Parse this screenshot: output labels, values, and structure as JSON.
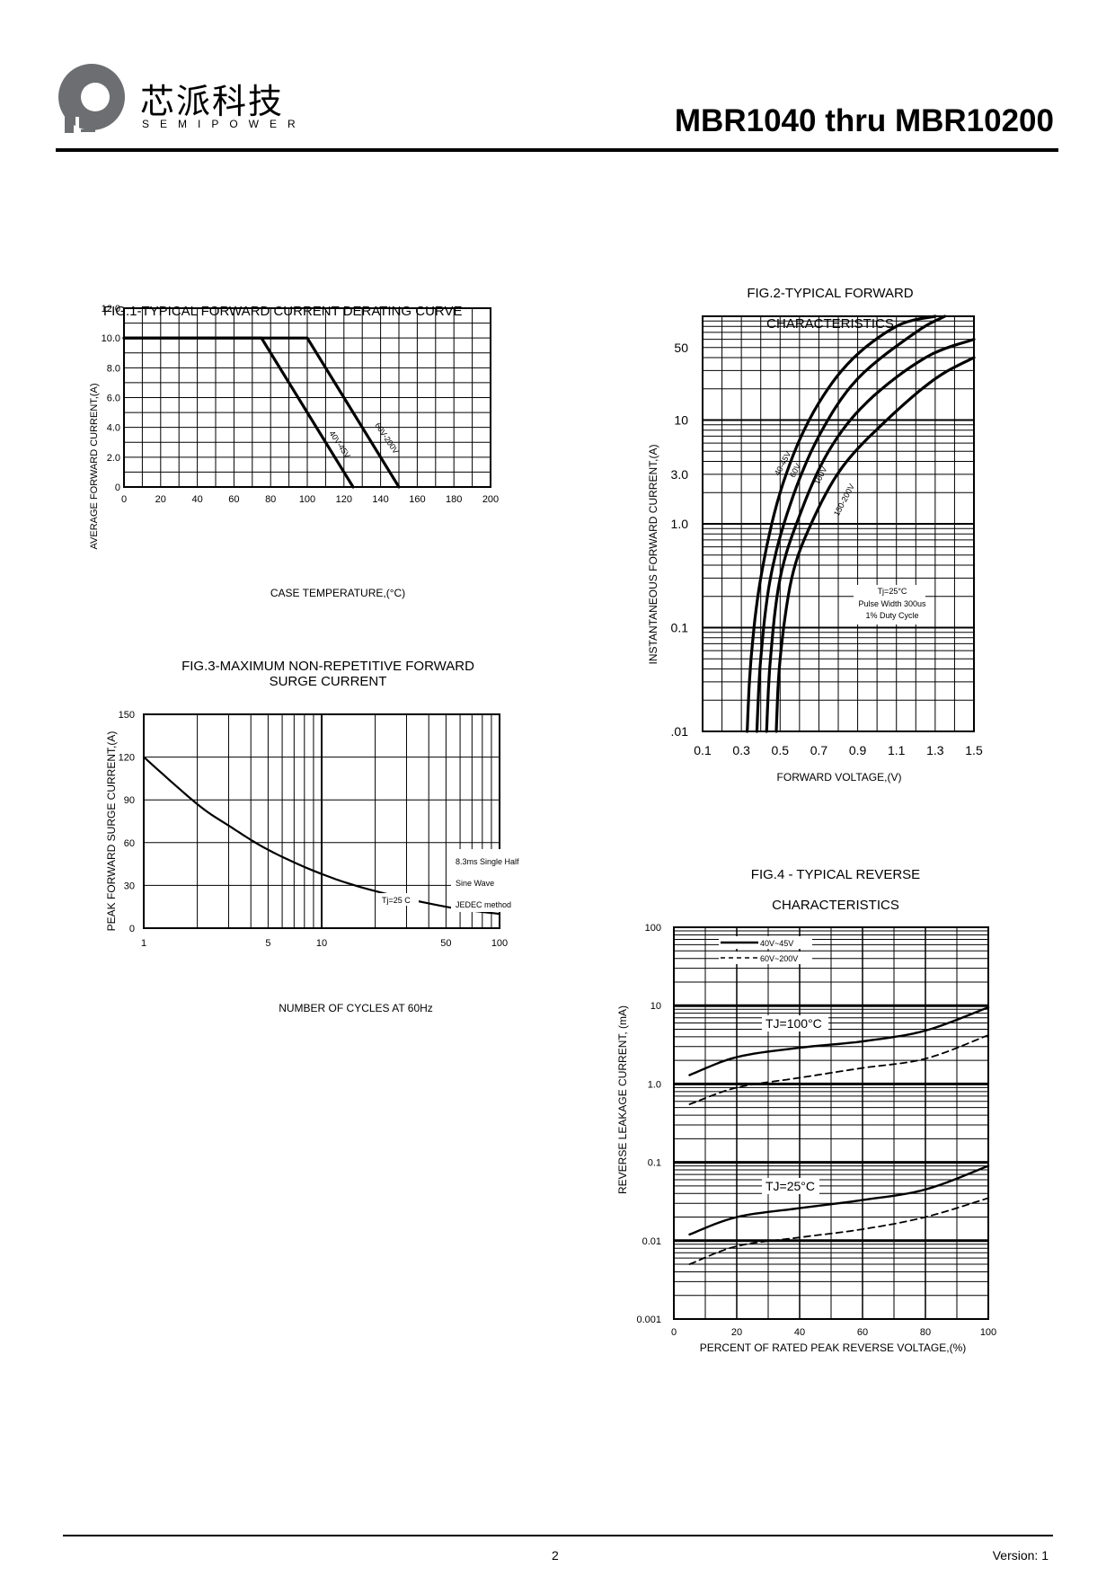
{
  "header": {
    "brand_cn": "芯派科技",
    "brand_en": "SEMIPOWER",
    "doc_title": "MBR1040 thru MBR10200"
  },
  "footer": {
    "page": "2",
    "version": "Version: 1"
  },
  "colors": {
    "ink": "#000000",
    "logo_gray": "#6d6e71"
  },
  "fig1": {
    "title": "FIG.1-TYPICAL FORWARD CURRENT DERATING CURVE",
    "ylabel": "AVERAGE FORWARD CURRENT,(A)",
    "xlabel": "CASE TEMPERATURE,(°C)",
    "xticks": [
      "0",
      "20",
      "40",
      "60",
      "80",
      "100",
      "120",
      "140",
      "160",
      "180",
      "200"
    ],
    "yticks": [
      "0",
      "2.0",
      "4.0",
      "6.0",
      "8.0",
      "10.0",
      "12.0"
    ],
    "curve_labels": [
      "40V-45V",
      "60V-200V"
    ]
  },
  "fig2": {
    "title_line1": "FIG.2-TYPICAL FORWARD",
    "title_line2": "CHARACTERISTICS",
    "ylabel": "INSTANTANEOUS FORWARD CURRENT,(A)",
    "xlabel": "FORWARD VOLTAGE,(V)",
    "xticks": [
      "0.1",
      "0.3",
      "0.5",
      "0.7",
      "0.9",
      "1.1",
      "1.3",
      "1.5"
    ],
    "yticks": [
      ".01",
      "0.1",
      "1.0",
      "3.0",
      "10",
      "50"
    ],
    "curve_labels": [
      "40-45V",
      "60V",
      "100V",
      "150-200V"
    ],
    "note_lines": [
      "Tj=25°C",
      "Pulse Width 300us",
      "1% Duty Cycle"
    ]
  },
  "fig3": {
    "title_line1": "FIG.3-MAXIMUM NON-REPETITIVE FORWARD",
    "title_line2": "SURGE CURRENT",
    "ylabel": "PEAK FORWARD SURGE CURRENT,(A)",
    "xlabel": "NUMBER OF CYCLES AT 60Hz",
    "xticks": [
      "1",
      "5",
      "10",
      "50",
      "100"
    ],
    "yticks": [
      "0",
      "30",
      "60",
      "90",
      "120",
      "150"
    ],
    "note_lines": [
      "8.3ms Single Half",
      "Sine Wave",
      "JEDEC method"
    ],
    "tj_label": "Tj=25 C"
  },
  "fig4": {
    "title_line1": "FIG.4 - TYPICAL REVERSE",
    "title_line2": "CHARACTERISTICS",
    "ylabel": "REVERSE LEAKAGE CURRENT, (mA)",
    "xlabel": "PERCENT OF RATED PEAK REVERSE VOLTAGE,(%)",
    "xticks": [
      "0",
      "20",
      "40",
      "60",
      "80",
      "100"
    ],
    "yticks": [
      "0.001",
      "0.01",
      "0.1",
      "1.0",
      "10",
      "100"
    ],
    "legend": [
      "40V~45V",
      "60V~200V"
    ],
    "tj_high": "TJ=100°C",
    "tj_low": "TJ=25°C"
  },
  "chart_data": [
    {
      "type": "line",
      "title": "FIG.1-TYPICAL FORWARD CURRENT DERATING CURVE",
      "xlabel": "CASE TEMPERATURE,(°C)",
      "ylabel": "AVERAGE FORWARD CURRENT,(A)",
      "xlim": [
        0,
        200
      ],
      "ylim": [
        0,
        12.0
      ],
      "grid": true,
      "series": [
        {
          "name": "40V-45V",
          "x": [
            0,
            75,
            125
          ],
          "y": [
            10.0,
            10.0,
            0
          ]
        },
        {
          "name": "60V-200V",
          "x": [
            0,
            100,
            150
          ],
          "y": [
            10.0,
            10.0,
            0
          ]
        }
      ]
    },
    {
      "type": "line",
      "title": "FIG.2-TYPICAL FORWARD CHARACTERISTICS",
      "xlabel": "FORWARD VOLTAGE,(V)",
      "ylabel": "INSTANTANEOUS FORWARD CURRENT,(A)",
      "xlim": [
        0.1,
        1.5
      ],
      "ylim": [
        0.01,
        100
      ],
      "yscale": "log",
      "grid": true,
      "series": [
        {
          "name": "40-45V",
          "x": [
            0.33,
            0.35,
            0.4,
            0.5,
            0.65,
            0.85,
            1.1,
            1.3
          ],
          "y": [
            0.01,
            0.05,
            0.3,
            2.0,
            10,
            35,
            80,
            100
          ]
        },
        {
          "name": "60V",
          "x": [
            0.38,
            0.4,
            0.45,
            0.55,
            0.7,
            0.9,
            1.2,
            1.35
          ],
          "y": [
            0.01,
            0.05,
            0.3,
            1.5,
            7,
            25,
            70,
            100
          ]
        },
        {
          "name": "100V",
          "x": [
            0.43,
            0.45,
            0.5,
            0.6,
            0.75,
            0.95,
            1.25,
            1.5
          ],
          "y": [
            0.01,
            0.05,
            0.3,
            1.2,
            5,
            15,
            40,
            60
          ]
        },
        {
          "name": "150-200V",
          "x": [
            0.48,
            0.5,
            0.56,
            0.66,
            0.82,
            1.05,
            1.3,
            1.5
          ],
          "y": [
            0.01,
            0.05,
            0.3,
            1.0,
            3.5,
            10,
            25,
            40
          ]
        }
      ]
    },
    {
      "type": "line",
      "title": "FIG.3-MAXIMUM NON-REPETITIVE FORWARD SURGE CURRENT",
      "xlabel": "NUMBER OF CYCLES AT 60Hz",
      "ylabel": "PEAK FORWARD SURGE CURRENT,(A)",
      "xlim": [
        1,
        100
      ],
      "ylim": [
        0,
        150
      ],
      "xscale": "log",
      "grid": true,
      "series": [
        {
          "x": [
            1,
            2,
            3,
            5,
            10,
            20,
            50,
            100
          ],
          "y": [
            120,
            87,
            72,
            55,
            38,
            26,
            15,
            10
          ]
        }
      ]
    },
    {
      "type": "line",
      "title": "FIG.4 - TYPICAL REVERSE CHARACTERISTICS",
      "xlabel": "PERCENT OF RATED PEAK REVERSE VOLTAGE,(%)",
      "ylabel": "REVERSE LEAKAGE CURRENT, (mA)",
      "xlim": [
        0,
        100
      ],
      "ylim": [
        0.001,
        100
      ],
      "yscale": "log",
      "grid": true,
      "legend_position": "top-left",
      "series": [
        {
          "name": "40V~45V TJ=100°C",
          "x": [
            5,
            20,
            40,
            60,
            80,
            100
          ],
          "y": [
            1.3,
            2.2,
            2.9,
            3.5,
            4.8,
            9.5
          ]
        },
        {
          "name": "60V~200V TJ=100°C",
          "x": [
            5,
            20,
            40,
            60,
            80,
            100
          ],
          "y": [
            0.55,
            0.9,
            1.2,
            1.6,
            2.1,
            4.2
          ]
        },
        {
          "name": "40V~45V TJ=25°C",
          "x": [
            5,
            20,
            40,
            60,
            80,
            100
          ],
          "y": [
            0.012,
            0.02,
            0.026,
            0.033,
            0.045,
            0.09
          ]
        },
        {
          "name": "60V~200V TJ=25°C",
          "x": [
            5,
            20,
            40,
            60,
            80,
            100
          ],
          "y": [
            0.005,
            0.0085,
            0.011,
            0.014,
            0.02,
            0.035
          ]
        }
      ]
    }
  ]
}
